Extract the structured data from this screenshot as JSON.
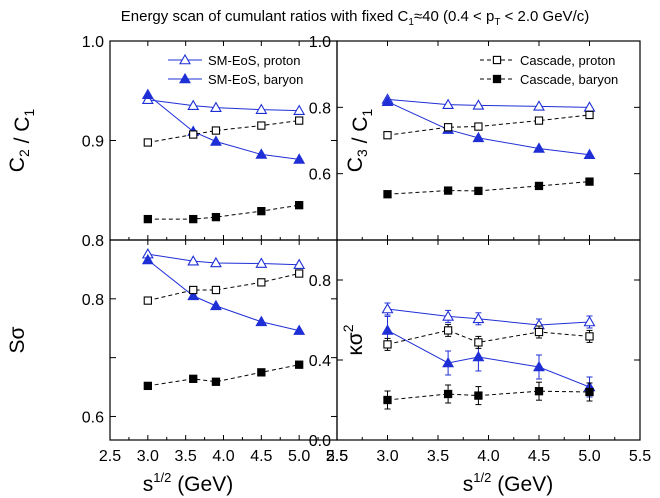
{
  "title": {
    "pre": "Energy scan of cumulant ratios with fixed C",
    "sub1": "1",
    "mid": "≈40 (0.4 < p",
    "sub2": "T",
    "post": " < 2.0 GeV/c)"
  },
  "x_label": {
    "base": "s",
    "sup": "1/2",
    "unit": " (GeV)"
  },
  "colors": {
    "sm": "#1f2fd6",
    "cascade": "#000000"
  },
  "chart_data": [
    {
      "type": "line",
      "ylabel": {
        "parts": [
          {
            "t": "C"
          },
          {
            "t": "2",
            "sub": true
          },
          {
            "t": " / C"
          },
          {
            "t": "1",
            "sub": true
          }
        ]
      },
      "xlim": [
        2.5,
        5.5
      ],
      "ylim": [
        0.8,
        1.0
      ],
      "xticks": [
        2.5,
        3.0,
        3.5,
        4.0,
        4.5,
        5.0,
        5.5
      ],
      "xtick_labels": [
        "2.5",
        "3.0",
        "3.5",
        "4.0",
        "4.5",
        "5.0",
        "5.5"
      ],
      "show_xtick_labels": false,
      "yticks": [
        0.8,
        0.9,
        1.0
      ],
      "ytick_labels": [
        "0.8",
        "0.9",
        "1.0"
      ],
      "legend": "top-right",
      "series": [
        {
          "name": "SM-EoS, proton",
          "style": "sm",
          "marker": "triangle-open",
          "dash": false,
          "x": [
            3.0,
            3.6,
            3.9,
            4.5,
            5.0
          ],
          "y": [
            0.941,
            0.935,
            0.933,
            0.931,
            0.93
          ]
        },
        {
          "name": "SM-EoS, baryon",
          "style": "sm",
          "marker": "triangle-filled",
          "dash": false,
          "x": [
            3.0,
            3.6,
            3.9,
            4.5,
            5.0
          ],
          "y": [
            0.946,
            0.909,
            0.899,
            0.886,
            0.881
          ]
        },
        {
          "name": "",
          "style": "cascade",
          "marker": "square-open",
          "dash": true,
          "x": [
            3.0,
            3.6,
            3.9,
            4.5,
            5.0
          ],
          "y": [
            0.898,
            0.906,
            0.91,
            0.915,
            0.92
          ]
        },
        {
          "name": "",
          "style": "cascade",
          "marker": "square-filled",
          "dash": true,
          "x": [
            3.0,
            3.6,
            3.9,
            4.5,
            5.0
          ],
          "y": [
            0.821,
            0.821,
            0.823,
            0.829,
            0.835
          ]
        }
      ]
    },
    {
      "type": "line",
      "ylabel": {
        "parts": [
          {
            "t": "C"
          },
          {
            "t": "3",
            "sub": true
          },
          {
            "t": " / C"
          },
          {
            "t": "1",
            "sub": true
          }
        ]
      },
      "xlim": [
        2.5,
        5.5
      ],
      "ylim": [
        0.4,
        1.0
      ],
      "xticks": [
        2.5,
        3.0,
        3.5,
        4.0,
        4.5,
        5.0,
        5.5
      ],
      "xtick_labels": [
        "2.5",
        "3.0",
        "3.5",
        "4.0",
        "4.5",
        "5.0",
        "5.5"
      ],
      "show_xtick_labels": false,
      "yticks": [
        0.6,
        0.8,
        1.0
      ],
      "ytick_labels": [
        "0.6",
        "0.8",
        "1.0"
      ],
      "legend": "top-right",
      "series": [
        {
          "name": "",
          "style": "sm",
          "marker": "triangle-open",
          "dash": false,
          "x": [
            3.0,
            3.6,
            3.9,
            4.5,
            5.0
          ],
          "y": [
            0.824,
            0.808,
            0.806,
            0.803,
            0.8
          ]
        },
        {
          "name": "",
          "style": "sm",
          "marker": "triangle-filled",
          "dash": false,
          "x": [
            3.0,
            3.6,
            3.9,
            4.5,
            5.0
          ],
          "y": [
            0.817,
            0.733,
            0.708,
            0.676,
            0.657
          ]
        },
        {
          "name": "Cascade, proton",
          "style": "cascade",
          "marker": "square-open",
          "dash": true,
          "x": [
            3.0,
            3.6,
            3.9,
            4.5,
            5.0
          ],
          "y": [
            0.716,
            0.74,
            0.742,
            0.76,
            0.777
          ]
        },
        {
          "name": "Cascade, baryon",
          "style": "cascade",
          "marker": "square-filled",
          "dash": true,
          "x": [
            3.0,
            3.6,
            3.9,
            4.5,
            5.0
          ],
          "y": [
            0.538,
            0.549,
            0.548,
            0.563,
            0.576
          ]
        }
      ]
    },
    {
      "type": "line",
      "ylabel": {
        "parts": [
          {
            "t": "Sσ"
          }
        ]
      },
      "xlim": [
        2.5,
        5.5
      ],
      "ylim": [
        0.56,
        0.9
      ],
      "xticks": [
        2.5,
        3.0,
        3.5,
        4.0,
        4.5,
        5.0,
        5.5
      ],
      "xtick_labels": [
        "2.5",
        "3.0",
        "3.5",
        "4.0",
        "4.5",
        "5.0",
        "5.5"
      ],
      "show_xtick_labels": true,
      "yticks": [
        0.6,
        0.7,
        0.8
      ],
      "ytick_labels": [
        "0.6",
        "",
        "0.8"
      ],
      "series": [
        {
          "name": "",
          "style": "sm",
          "marker": "triangle-open",
          "dash": false,
          "x": [
            3.0,
            3.6,
            3.9,
            4.5,
            5.0
          ],
          "y": [
            0.876,
            0.864,
            0.861,
            0.86,
            0.858
          ]
        },
        {
          "name": "",
          "style": "sm",
          "marker": "triangle-filled",
          "dash": false,
          "x": [
            3.0,
            3.6,
            3.9,
            4.5,
            5.0
          ],
          "y": [
            0.866,
            0.805,
            0.788,
            0.761,
            0.746
          ]
        },
        {
          "name": "",
          "style": "cascade",
          "marker": "square-open",
          "dash": true,
          "x": [
            3.0,
            3.6,
            3.9,
            4.5,
            5.0
          ],
          "y": [
            0.797,
            0.815,
            0.815,
            0.828,
            0.843
          ]
        },
        {
          "name": "",
          "style": "cascade",
          "marker": "square-filled",
          "dash": true,
          "x": [
            3.0,
            3.6,
            3.9,
            4.5,
            5.0
          ],
          "y": [
            0.652,
            0.664,
            0.659,
            0.675,
            0.688
          ]
        }
      ]
    },
    {
      "type": "line",
      "ylabel": {
        "parts": [
          {
            "t": "κσ"
          },
          {
            "t": "2",
            "sup": true
          }
        ]
      },
      "xlim": [
        2.5,
        5.5
      ],
      "ylim": [
        0.0,
        1.0
      ],
      "xticks": [
        2.5,
        3.0,
        3.5,
        4.0,
        4.5,
        5.0,
        5.5
      ],
      "xtick_labels": [
        "2.5",
        "3.0",
        "3.5",
        "4.0",
        "4.5",
        "5.0",
        "5.5"
      ],
      "show_xtick_labels": true,
      "yticks": [
        0.0,
        0.4,
        0.8
      ],
      "ytick_labels": [
        "0.0",
        "0.4",
        "0.8"
      ],
      "series": [
        {
          "name": "",
          "style": "sm",
          "marker": "triangle-open",
          "dash": false,
          "x": [
            3.0,
            3.6,
            3.9,
            4.5,
            5.0
          ],
          "y": [
            0.655,
            0.618,
            0.606,
            0.575,
            0.59
          ],
          "err": [
            0.03,
            0.03,
            0.03,
            0.03,
            0.03
          ]
        },
        {
          "name": "",
          "style": "sm",
          "marker": "triangle-filled",
          "dash": false,
          "x": [
            3.0,
            3.6,
            3.9,
            4.5,
            5.0
          ],
          "y": [
            0.548,
            0.385,
            0.415,
            0.365,
            0.265
          ],
          "err": [
            0.07,
            0.06,
            0.07,
            0.06,
            0.05
          ]
        },
        {
          "name": "",
          "style": "cascade",
          "marker": "square-open",
          "dash": true,
          "x": [
            3.0,
            3.6,
            3.9,
            4.5,
            5.0
          ],
          "y": [
            0.478,
            0.548,
            0.488,
            0.54,
            0.518
          ],
          "err": [
            0.03,
            0.03,
            0.03,
            0.03,
            0.03
          ]
        },
        {
          "name": "",
          "style": "cascade",
          "marker": "square-filled",
          "dash": true,
          "x": [
            3.0,
            3.6,
            3.9,
            4.5,
            5.0
          ],
          "y": [
            0.2,
            0.23,
            0.222,
            0.244,
            0.24
          ],
          "err": [
            0.045,
            0.045,
            0.045,
            0.045,
            0.045
          ]
        }
      ]
    }
  ]
}
